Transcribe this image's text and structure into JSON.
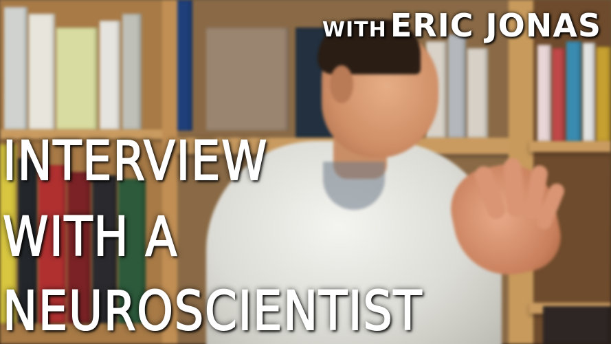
{
  "image": {
    "description_colors": {
      "shelf_wood": "#b98a50",
      "shirt": "#ecece8",
      "text": "#ffffff"
    }
  },
  "overlay": {
    "with_word": "WITH",
    "guest_name": "ERIC JONAS",
    "title_lines": [
      "INTERVIEW",
      "WITH A",
      "NEUROSCIENTIST"
    ]
  }
}
